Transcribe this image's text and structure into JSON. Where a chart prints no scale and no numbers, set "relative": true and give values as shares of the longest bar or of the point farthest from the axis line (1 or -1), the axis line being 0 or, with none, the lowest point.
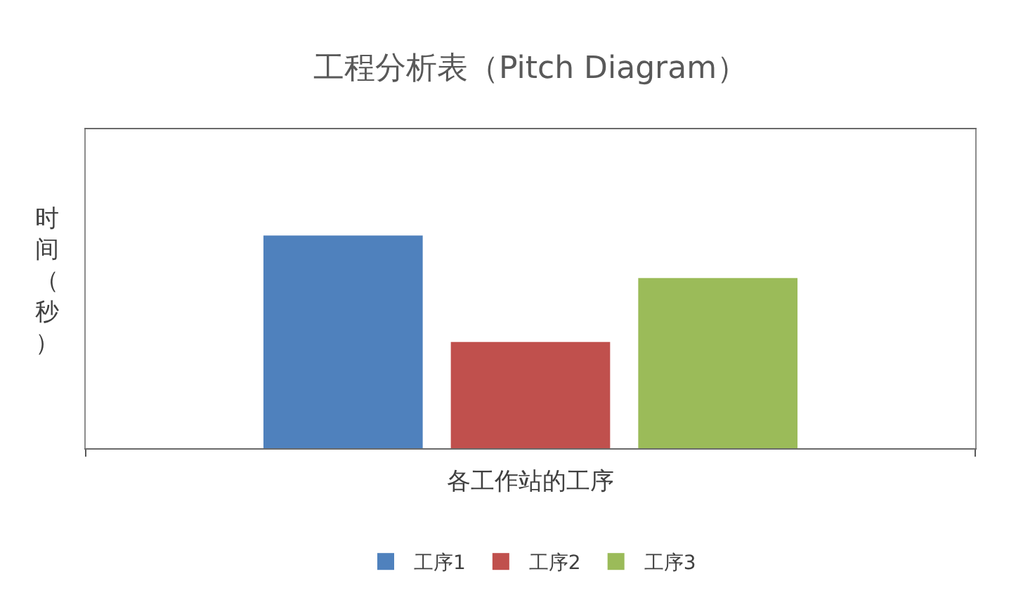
{
  "chart_data": {
    "type": "bar",
    "title": "工程分析表（Pitch Diagram）",
    "xlabel": "各工作站的工序",
    "ylabel": "时间（秒）",
    "categories": [
      null
    ],
    "relative": true,
    "series": [
      {
        "name": "工序1",
        "color": "#4f81bd",
        "values": [
          1
        ]
      },
      {
        "name": "工序2",
        "color": "#c0504d",
        "values": [
          0.5
        ]
      },
      {
        "name": "工序3",
        "color": "#9bbb59",
        "values": [
          0.8
        ]
      }
    ],
    "legend": "bottom"
  }
}
